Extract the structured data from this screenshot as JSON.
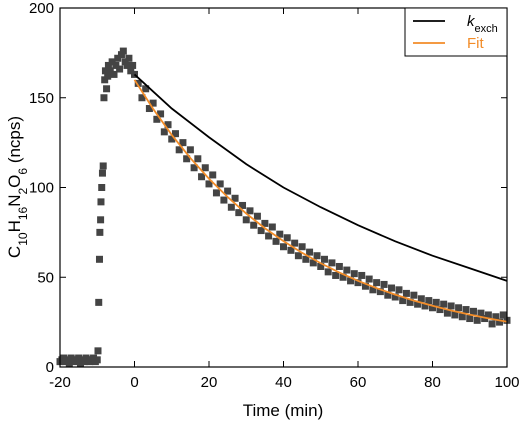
{
  "chart_data": {
    "type": "scatter-lines",
    "x_label": "Time (min)",
    "y_label": [
      {
        "text": "C"
      },
      {
        "text": "10",
        "sub": true
      },
      {
        "text": "H"
      },
      {
        "text": "16",
        "sub": true
      },
      {
        "text": "N"
      },
      {
        "text": "2",
        "sub": true
      },
      {
        "text": "O"
      },
      {
        "text": "6",
        "sub": true
      },
      {
        "text": " (ncps)"
      }
    ],
    "xlim": [
      -20,
      100
    ],
    "xticks": [
      -20,
      0,
      20,
      40,
      60,
      80,
      100
    ],
    "ylim": [
      0,
      200
    ],
    "yticks": [
      0,
      50,
      100,
      150,
      200
    ],
    "legend": "upper right",
    "scatter": {
      "color": "#444444",
      "x": [
        -20,
        -19.5,
        -19,
        -18.5,
        -18,
        -17.5,
        -17,
        -16.5,
        -16,
        -15.5,
        -15,
        -14.5,
        -14,
        -13.5,
        -13,
        -12.5,
        -12,
        -11.5,
        -11,
        -10.5,
        -10,
        -9.8,
        -9.6,
        -9.4,
        -9.3,
        -9.1,
        -9,
        -8.8,
        -8.6,
        -8.4,
        -8.2,
        -8,
        -7.8,
        -7.5,
        -7.2,
        -7,
        -6.5,
        -6,
        -5.5,
        -5,
        -4.5,
        -4,
        -3.5,
        -3,
        -2.5,
        -2,
        -1.5,
        -1,
        -0.5,
        0,
        1,
        2,
        3,
        4,
        5,
        6,
        7,
        8,
        9,
        10,
        11,
        12,
        13,
        14,
        15,
        16,
        17,
        18,
        19,
        20,
        21,
        22,
        23,
        24,
        25,
        26,
        27,
        28,
        29,
        30,
        31,
        32,
        33,
        34,
        35,
        36,
        37,
        38,
        39,
        40,
        41,
        42,
        43,
        44,
        45,
        46,
        47,
        48,
        49,
        50,
        51,
        52,
        53,
        54,
        55,
        56,
        57,
        58,
        59,
        60,
        61,
        62,
        63,
        64,
        65,
        66,
        67,
        68,
        69,
        70,
        71,
        72,
        73,
        74,
        75,
        76,
        77,
        78,
        79,
        80,
        81,
        82,
        83,
        84,
        85,
        86,
        87,
        88,
        89,
        90,
        91,
        92,
        93,
        94,
        95,
        96,
        97,
        98,
        99,
        100
      ],
      "values": [
        3,
        4,
        5,
        3,
        4,
        2,
        5,
        4,
        3,
        4,
        5,
        2,
        4,
        3,
        5,
        4,
        3,
        4,
        5,
        3,
        4,
        9,
        36,
        60,
        75,
        82,
        92,
        100,
        108,
        112,
        150,
        160,
        165,
        155,
        162,
        168,
        165,
        170,
        163,
        168,
        172,
        166,
        174,
        176,
        170,
        168,
        172,
        165,
        168,
        163,
        158,
        150,
        155,
        144,
        147,
        138,
        141,
        131,
        135,
        127,
        130,
        121,
        125,
        116,
        121,
        111,
        116,
        106,
        111,
        102,
        107,
        97,
        102,
        93,
        98,
        89,
        94,
        86,
        90,
        82,
        87,
        79,
        84,
        76,
        80,
        73,
        78,
        70,
        74,
        67,
        72,
        65,
        69,
        62,
        67,
        60,
        64,
        58,
        62,
        56,
        60,
        53,
        58,
        51,
        56,
        50,
        54,
        48,
        52,
        47,
        51,
        45,
        49,
        43,
        47,
        42,
        46,
        40,
        44,
        39,
        43,
        37,
        41,
        36,
        40,
        35,
        38,
        34,
        37,
        33,
        36,
        32,
        35,
        30,
        34,
        29,
        33,
        28,
        32,
        27,
        31,
        26,
        30,
        27,
        29,
        24,
        28,
        25,
        29,
        26
      ]
    },
    "series": [
      {
        "name": "k",
        "subscript": "exch",
        "color": "#000000",
        "x": [
          0,
          10,
          20,
          30,
          40,
          50,
          60,
          70,
          80,
          90,
          100
        ],
        "values": [
          163,
          144,
          128,
          113,
          100,
          89,
          79,
          70,
          62,
          55,
          48
        ]
      },
      {
        "name": "Fit",
        "color": "#f28c28",
        "x": [
          0,
          5,
          10,
          15,
          20,
          25,
          30,
          35,
          40,
          45,
          50,
          55,
          60,
          65,
          70,
          75,
          80,
          85,
          90,
          95,
          100
        ],
        "values": [
          160,
          143.8,
          129.3,
          116.4,
          104.9,
          94.7,
          85.5,
          77.3,
          70.1,
          63.6,
          57.8,
          52.6,
          48,
          43.9,
          40.3,
          37,
          34.1,
          31.5,
          29.2,
          27.1,
          25.2
        ]
      }
    ]
  }
}
